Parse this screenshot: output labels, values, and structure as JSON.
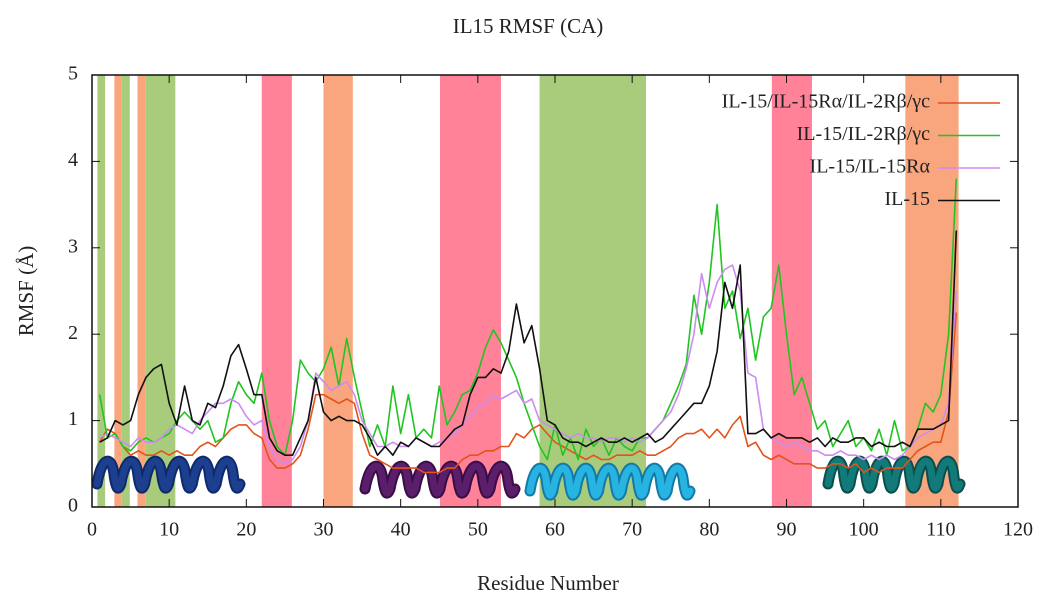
{
  "chart_data": {
    "type": "line",
    "title": "IL15 RMSF (CA)",
    "xlabel": "Residue Number",
    "ylabel": "RMSF (Å)",
    "xlim": [
      0,
      120
    ],
    "xticks": [
      0,
      10,
      20,
      30,
      40,
      50,
      60,
      70,
      80,
      90,
      100,
      110,
      120
    ],
    "ylim": [
      0,
      5
    ],
    "yticks": [
      0,
      1,
      2,
      3,
      4,
      5
    ],
    "legend": "upper right",
    "shaded_regions": [
      {
        "start": 0.7,
        "end": 1.7,
        "color": "#a9cc7c"
      },
      {
        "start": 2.9,
        "end": 3.8,
        "color": "#f9a67e"
      },
      {
        "start": 3.8,
        "end": 4.9,
        "color": "#a9cc7c"
      },
      {
        "start": 5.9,
        "end": 6.9,
        "color": "#f9a67e"
      },
      {
        "start": 6.9,
        "end": 10.8,
        "color": "#a9cc7c"
      },
      {
        "start": 22,
        "end": 25.9,
        "color": "#ff8299"
      },
      {
        "start": 30,
        "end": 33.8,
        "color": "#f9a67e"
      },
      {
        "start": 45.1,
        "end": 53,
        "color": "#ff8299"
      },
      {
        "start": 58,
        "end": 71.8,
        "color": "#a9cc7c"
      },
      {
        "start": 88.1,
        "end": 93.3,
        "color": "#ff8299"
      },
      {
        "start": 105.4,
        "end": 112.3,
        "color": "#f9a67e"
      }
    ],
    "x": [
      1,
      2,
      3,
      4,
      5,
      6,
      7,
      8,
      9,
      10,
      11,
      12,
      13,
      14,
      15,
      16,
      17,
      18,
      19,
      20,
      21,
      22,
      23,
      24,
      25,
      26,
      27,
      28,
      29,
      30,
      31,
      32,
      33,
      34,
      35,
      36,
      37,
      38,
      39,
      40,
      41,
      42,
      43,
      44,
      45,
      46,
      47,
      48,
      49,
      50,
      51,
      52,
      53,
      54,
      55,
      56,
      57,
      58,
      59,
      60,
      61,
      62,
      63,
      64,
      65,
      66,
      67,
      68,
      69,
      70,
      71,
      72,
      73,
      74,
      75,
      76,
      77,
      78,
      79,
      80,
      81,
      82,
      83,
      84,
      85,
      86,
      87,
      88,
      89,
      90,
      91,
      92,
      93,
      94,
      95,
      96,
      97,
      98,
      99,
      100,
      101,
      102,
      103,
      104,
      105,
      106,
      107,
      108,
      109,
      110,
      111,
      112
    ],
    "series": [
      {
        "name": "IL-15/IL-15Rα/IL-2Rβ/γc",
        "color": "#e2531d",
        "values": [
          0.75,
          0.9,
          0.85,
          0.7,
          0.6,
          0.65,
          0.6,
          0.6,
          0.65,
          0.6,
          0.65,
          0.6,
          0.6,
          0.7,
          0.75,
          0.7,
          0.8,
          0.9,
          0.95,
          0.95,
          0.85,
          0.8,
          0.55,
          0.45,
          0.45,
          0.5,
          0.6,
          0.9,
          1.3,
          1.3,
          1.25,
          1.2,
          1.25,
          1.2,
          0.85,
          0.6,
          0.55,
          0.5,
          0.45,
          0.45,
          0.45,
          0.45,
          0.4,
          0.4,
          0.4,
          0.45,
          0.45,
          0.55,
          0.6,
          0.6,
          0.65,
          0.65,
          0.7,
          0.7,
          0.85,
          0.8,
          0.9,
          0.95,
          0.85,
          0.75,
          0.7,
          0.65,
          0.6,
          0.55,
          0.6,
          0.55,
          0.55,
          0.6,
          0.6,
          0.6,
          0.65,
          0.6,
          0.6,
          0.65,
          0.7,
          0.8,
          0.85,
          0.85,
          0.9,
          0.8,
          0.9,
          0.8,
          0.95,
          1.05,
          0.7,
          0.75,
          0.6,
          0.55,
          0.6,
          0.55,
          0.5,
          0.5,
          0.5,
          0.45,
          0.45,
          0.5,
          0.5,
          0.45,
          0.5,
          0.4,
          0.45,
          0.4,
          0.45,
          0.45,
          0.45,
          0.55,
          0.65,
          0.7,
          0.75,
          0.75,
          1.1,
          2.25
        ]
      },
      {
        "name": "IL-15/IL-2Rβ/γc",
        "color": "#22c422",
        "values": [
          1.3,
          0.8,
          0.85,
          0.7,
          0.65,
          0.75,
          0.8,
          0.75,
          0.8,
          0.85,
          1.0,
          1.1,
          1.0,
          0.9,
          1.0,
          0.75,
          0.8,
          1.2,
          1.45,
          1.3,
          1.2,
          1.55,
          1.0,
          0.7,
          0.6,
          1.0,
          1.7,
          1.55,
          1.45,
          1.6,
          1.85,
          1.4,
          1.95,
          1.5,
          1.1,
          0.7,
          0.95,
          0.7,
          1.4,
          0.85,
          1.3,
          0.8,
          0.9,
          0.8,
          1.4,
          0.95,
          1.1,
          1.3,
          1.35,
          1.55,
          1.85,
          2.05,
          1.9,
          1.7,
          1.5,
          1.2,
          0.95,
          0.7,
          0.55,
          0.95,
          0.6,
          0.8,
          0.55,
          0.9,
          0.7,
          0.8,
          0.6,
          0.8,
          0.7,
          0.65,
          0.8,
          0.8,
          0.9,
          1.0,
          1.2,
          1.4,
          1.65,
          2.45,
          2.0,
          2.6,
          3.5,
          2.3,
          2.5,
          1.95,
          2.3,
          1.7,
          2.2,
          2.3,
          2.8,
          2.0,
          1.3,
          1.5,
          1.2,
          0.9,
          1.0,
          0.7,
          0.85,
          1.0,
          0.7,
          0.8,
          0.65,
          0.9,
          0.6,
          1.0,
          0.65,
          0.7,
          0.9,
          1.2,
          1.1,
          1.3,
          2.0,
          3.8
        ]
      },
      {
        "name": "IL-15/IL-15Rα",
        "color": "#cc8cf0",
        "values": [
          0.8,
          0.85,
          0.8,
          0.75,
          0.7,
          0.8,
          0.75,
          0.75,
          0.8,
          0.9,
          0.95,
          0.9,
          0.85,
          1.0,
          1.1,
          1.2,
          1.2,
          1.25,
          1.2,
          1.05,
          0.95,
          1.0,
          0.7,
          0.55,
          0.5,
          0.55,
          0.7,
          1.0,
          1.55,
          1.45,
          1.35,
          1.4,
          1.45,
          1.3,
          1.0,
          0.85,
          0.7,
          0.7,
          0.75,
          0.7,
          0.7,
          0.8,
          0.75,
          0.7,
          0.75,
          0.8,
          0.85,
          0.95,
          1.05,
          1.15,
          1.2,
          1.3,
          1.25,
          1.3,
          1.35,
          1.2,
          1.25,
          1.0,
          0.95,
          0.9,
          0.85,
          0.8,
          0.85,
          0.8,
          0.8,
          0.75,
          0.8,
          0.8,
          0.75,
          0.8,
          0.75,
          0.8,
          0.9,
          1.0,
          1.1,
          1.3,
          1.6,
          2.0,
          2.7,
          2.3,
          2.6,
          2.75,
          2.8,
          2.5,
          1.55,
          1.5,
          0.9,
          0.8,
          0.75,
          0.7,
          0.75,
          0.7,
          0.65,
          0.65,
          0.6,
          0.6,
          0.65,
          0.6,
          0.6,
          0.55,
          0.6,
          0.55,
          0.6,
          0.55,
          0.6,
          0.7,
          0.8,
          0.85,
          0.9,
          0.95,
          1.2,
          2.5
        ]
      },
      {
        "name": "IL-15",
        "color": "#111111",
        "values": [
          0.75,
          0.8,
          1.0,
          0.95,
          1.0,
          1.3,
          1.5,
          1.6,
          1.65,
          1.2,
          0.95,
          1.4,
          1.0,
          0.95,
          1.2,
          1.15,
          1.4,
          1.75,
          1.88,
          1.6,
          1.3,
          1.3,
          0.8,
          0.65,
          0.6,
          0.6,
          0.8,
          1.0,
          1.5,
          1.1,
          1.0,
          1.05,
          1.0,
          1.0,
          0.95,
          0.8,
          0.6,
          0.7,
          0.6,
          0.75,
          0.7,
          0.8,
          0.75,
          0.7,
          0.7,
          0.8,
          0.9,
          0.95,
          1.3,
          1.5,
          1.5,
          1.6,
          1.55,
          1.8,
          2.35,
          1.9,
          2.1,
          1.6,
          1.0,
          0.95,
          0.8,
          0.75,
          0.75,
          0.7,
          0.75,
          0.8,
          0.75,
          0.75,
          0.8,
          0.75,
          0.8,
          0.85,
          0.75,
          0.8,
          0.9,
          1.0,
          1.1,
          1.2,
          1.2,
          1.4,
          1.8,
          2.6,
          2.3,
          2.8,
          0.85,
          0.85,
          0.9,
          0.8,
          0.85,
          0.8,
          0.8,
          0.8,
          0.75,
          0.8,
          0.7,
          0.8,
          0.75,
          0.75,
          0.8,
          0.8,
          0.7,
          0.75,
          0.7,
          0.7,
          0.75,
          0.7,
          0.9,
          0.9,
          0.9,
          0.95,
          1.0,
          3.2
        ]
      }
    ]
  }
}
